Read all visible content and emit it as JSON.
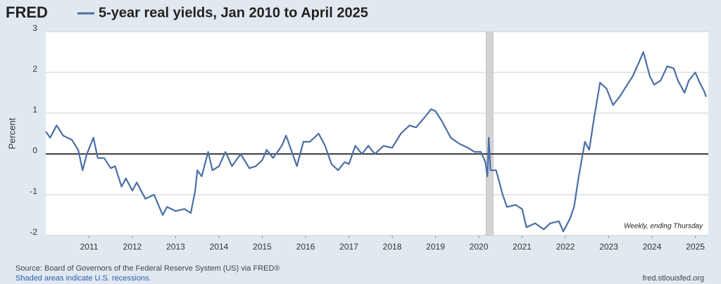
{
  "logo": "FRED",
  "chart_data": {
    "type": "line",
    "title": "5-year real yields, Jan 2010 to April 2025",
    "y_label": "Percent",
    "annotation": "Weekly, ending Thursday",
    "color": "#4a6fa5",
    "grid": true,
    "xlim": [
      2010.0,
      2025.3
    ],
    "xticks": [
      2011,
      2012,
      2013,
      2014,
      2015,
      2016,
      2017,
      2018,
      2019,
      2020,
      2021,
      2022,
      2023,
      2024,
      2025
    ],
    "ylim": [
      -2,
      3
    ],
    "yticks": [
      -2,
      -1,
      0,
      1,
      2,
      3
    ],
    "recessions": [
      [
        2020.17,
        2020.33
      ]
    ],
    "x": [
      2010.0,
      2010.1,
      2010.25,
      2010.4,
      2010.6,
      2010.75,
      2010.85,
      2010.95,
      2011.1,
      2011.2,
      2011.35,
      2011.5,
      2011.6,
      2011.75,
      2011.85,
      2012.0,
      2012.1,
      2012.3,
      2012.5,
      2012.7,
      2012.8,
      2013.0,
      2013.2,
      2013.35,
      2013.45,
      2013.5,
      2013.6,
      2013.75,
      2013.85,
      2014.0,
      2014.15,
      2014.3,
      2014.5,
      2014.7,
      2014.85,
      2015.0,
      2015.1,
      2015.25,
      2015.45,
      2015.55,
      2015.7,
      2015.8,
      2015.95,
      2016.1,
      2016.3,
      2016.45,
      2016.6,
      2016.75,
      2016.9,
      2017.0,
      2017.15,
      2017.3,
      2017.45,
      2017.6,
      2017.8,
      2018.0,
      2018.2,
      2018.4,
      2018.55,
      2018.75,
      2018.9,
      2019.0,
      2019.15,
      2019.35,
      2019.55,
      2019.75,
      2019.9,
      2020.05,
      2020.15,
      2020.2,
      2020.23,
      2020.27,
      2020.4,
      2020.55,
      2020.65,
      2020.85,
      2021.0,
      2021.1,
      2021.3,
      2021.5,
      2021.65,
      2021.85,
      2021.95,
      2022.1,
      2022.2,
      2022.3,
      2022.45,
      2022.55,
      2022.65,
      2022.8,
      2022.95,
      2023.1,
      2023.25,
      2023.4,
      2023.55,
      2023.7,
      2023.8,
      2023.95,
      2024.05,
      2024.2,
      2024.35,
      2024.5,
      2024.6,
      2024.75,
      2024.85,
      2025.0,
      2025.1,
      2025.2,
      2025.25
    ],
    "values": [
      0.55,
      0.4,
      0.7,
      0.45,
      0.35,
      0.1,
      -0.4,
      0.0,
      0.4,
      -0.1,
      -0.1,
      -0.35,
      -0.3,
      -0.8,
      -0.6,
      -0.9,
      -0.7,
      -1.1,
      -1.0,
      -1.5,
      -1.3,
      -1.4,
      -1.35,
      -1.45,
      -0.9,
      -0.4,
      -0.55,
      0.05,
      -0.4,
      -0.3,
      0.05,
      -0.3,
      0.0,
      -0.35,
      -0.3,
      -0.15,
      0.1,
      -0.1,
      0.2,
      0.45,
      0.0,
      -0.3,
      0.3,
      0.3,
      0.5,
      0.2,
      -0.25,
      -0.4,
      -0.2,
      -0.25,
      0.2,
      0.0,
      0.2,
      0.0,
      0.2,
      0.15,
      0.5,
      0.7,
      0.65,
      0.9,
      1.1,
      1.05,
      0.8,
      0.4,
      0.25,
      0.15,
      0.05,
      0.05,
      -0.2,
      -0.55,
      0.4,
      -0.4,
      -0.4,
      -1.0,
      -1.3,
      -1.25,
      -1.35,
      -1.8,
      -1.7,
      -1.85,
      -1.7,
      -1.65,
      -1.9,
      -1.6,
      -1.3,
      -0.6,
      0.3,
      0.1,
      0.8,
      1.75,
      1.6,
      1.2,
      1.4,
      1.65,
      1.9,
      2.25,
      2.5,
      1.9,
      1.7,
      1.8,
      2.15,
      2.1,
      1.8,
      1.5,
      1.8,
      2.0,
      1.75,
      1.55,
      1.4
    ]
  },
  "footer": {
    "source": "Source: Board of Governors of the Federal Reserve System (US) via FRED®",
    "note": "Shaded areas indicate U.S. recessions.",
    "site": "fred.stlouisfed.org"
  }
}
